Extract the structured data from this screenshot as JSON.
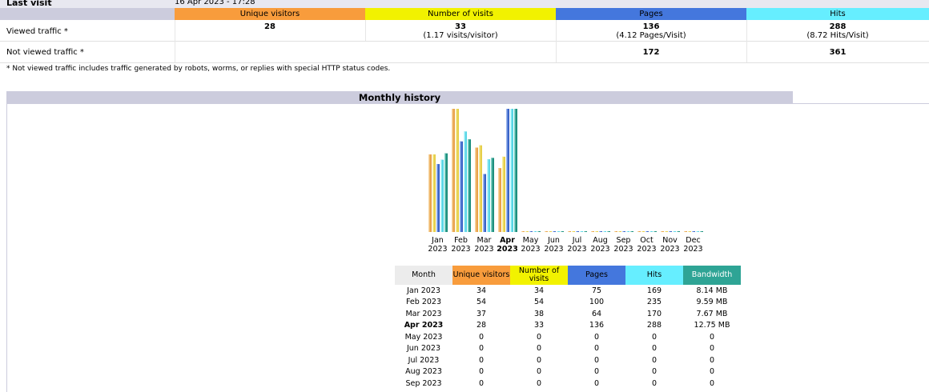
{
  "summary": {
    "last_visit_label": "Last visit",
    "last_visit_value": "16 Apr 2023 - 17:28",
    "headers": {
      "unique_visitors": "Unique visitors",
      "number_of_visits": "Number of visits",
      "pages": "Pages",
      "hits": "Hits"
    },
    "colors": {
      "unique_visitors": "#f89c3c",
      "number_of_visits": "#f2f200",
      "pages": "#4477dd",
      "hits": "#66eeff",
      "bandwidth": "#2ea495",
      "header_bg": "#ccccdd"
    },
    "viewed": {
      "label": "Viewed traffic *",
      "unique_visitors": "28",
      "visits": "33",
      "visits_sub": "(1.17 visits/visitor)",
      "pages": "136",
      "pages_sub": "(4.12 Pages/Visit)",
      "hits": "288",
      "hits_sub": "(8.72 Hits/Visit)"
    },
    "not_viewed": {
      "label": "Not viewed traffic *",
      "pages": "172",
      "hits": "361"
    },
    "note": "* Not viewed traffic includes traffic generated by robots, worms, or replies with special HTTP status codes."
  },
  "monthly_history": {
    "title": "Monthly history",
    "table_headers": {
      "month": "Month",
      "unique_visitors": "Unique visitors",
      "number_of_visits": "Number of visits",
      "pages": "Pages",
      "hits": "Hits",
      "bandwidth": "Bandwidth"
    },
    "rows": [
      {
        "month": "Jan 2023",
        "uv": "34",
        "visits": "34",
        "pages": "75",
        "hits": "169",
        "bw": "8.14 MB",
        "current": false
      },
      {
        "month": "Feb 2023",
        "uv": "54",
        "visits": "54",
        "pages": "100",
        "hits": "235",
        "bw": "9.59 MB",
        "current": false
      },
      {
        "month": "Mar 2023",
        "uv": "37",
        "visits": "38",
        "pages": "64",
        "hits": "170",
        "bw": "7.67 MB",
        "current": false
      },
      {
        "month": "Apr 2023",
        "uv": "28",
        "visits": "33",
        "pages": "136",
        "hits": "288",
        "bw": "12.75 MB",
        "current": true
      },
      {
        "month": "May 2023",
        "uv": "0",
        "visits": "0",
        "pages": "0",
        "hits": "0",
        "bw": "0",
        "current": false
      },
      {
        "month": "Jun 2023",
        "uv": "0",
        "visits": "0",
        "pages": "0",
        "hits": "0",
        "bw": "0",
        "current": false
      },
      {
        "month": "Jul 2023",
        "uv": "0",
        "visits": "0",
        "pages": "0",
        "hits": "0",
        "bw": "0",
        "current": false
      },
      {
        "month": "Aug 2023",
        "uv": "0",
        "visits": "0",
        "pages": "0",
        "hits": "0",
        "bw": "0",
        "current": false
      },
      {
        "month": "Sep 2023",
        "uv": "0",
        "visits": "0",
        "pages": "0",
        "hits": "0",
        "bw": "0",
        "current": false
      }
    ]
  },
  "chart_data": {
    "type": "bar",
    "categories": [
      "Jan 2023",
      "Feb 2023",
      "Mar 2023",
      "Apr 2023",
      "May 2023",
      "Jun 2023",
      "Jul 2023",
      "Aug 2023",
      "Sep 2023",
      "Oct 2023",
      "Nov 2023",
      "Dec 2023"
    ],
    "month_labels": [
      "Jan",
      "Feb",
      "Mar",
      "Apr",
      "May",
      "Jun",
      "Jul",
      "Aug",
      "Sep",
      "Oct",
      "Nov",
      "Dec"
    ],
    "year_label": "2023",
    "highlight_index": 3,
    "series": [
      {
        "name": "Unique visitors",
        "values": [
          34,
          54,
          37,
          28,
          0,
          0,
          0,
          0,
          0,
          0,
          0,
          0
        ]
      },
      {
        "name": "Number of visits",
        "values": [
          34,
          54,
          38,
          33,
          0,
          0,
          0,
          0,
          0,
          0,
          0,
          0
        ]
      },
      {
        "name": "Pages",
        "values": [
          75,
          100,
          64,
          136,
          0,
          0,
          0,
          0,
          0,
          0,
          0,
          0
        ]
      },
      {
        "name": "Hits",
        "values": [
          169,
          235,
          170,
          288,
          0,
          0,
          0,
          0,
          0,
          0,
          0,
          0
        ]
      },
      {
        "name": "Bandwidth",
        "values": [
          8.14,
          9.59,
          7.67,
          12.75,
          0,
          0,
          0,
          0,
          0,
          0,
          0,
          0
        ]
      }
    ]
  }
}
